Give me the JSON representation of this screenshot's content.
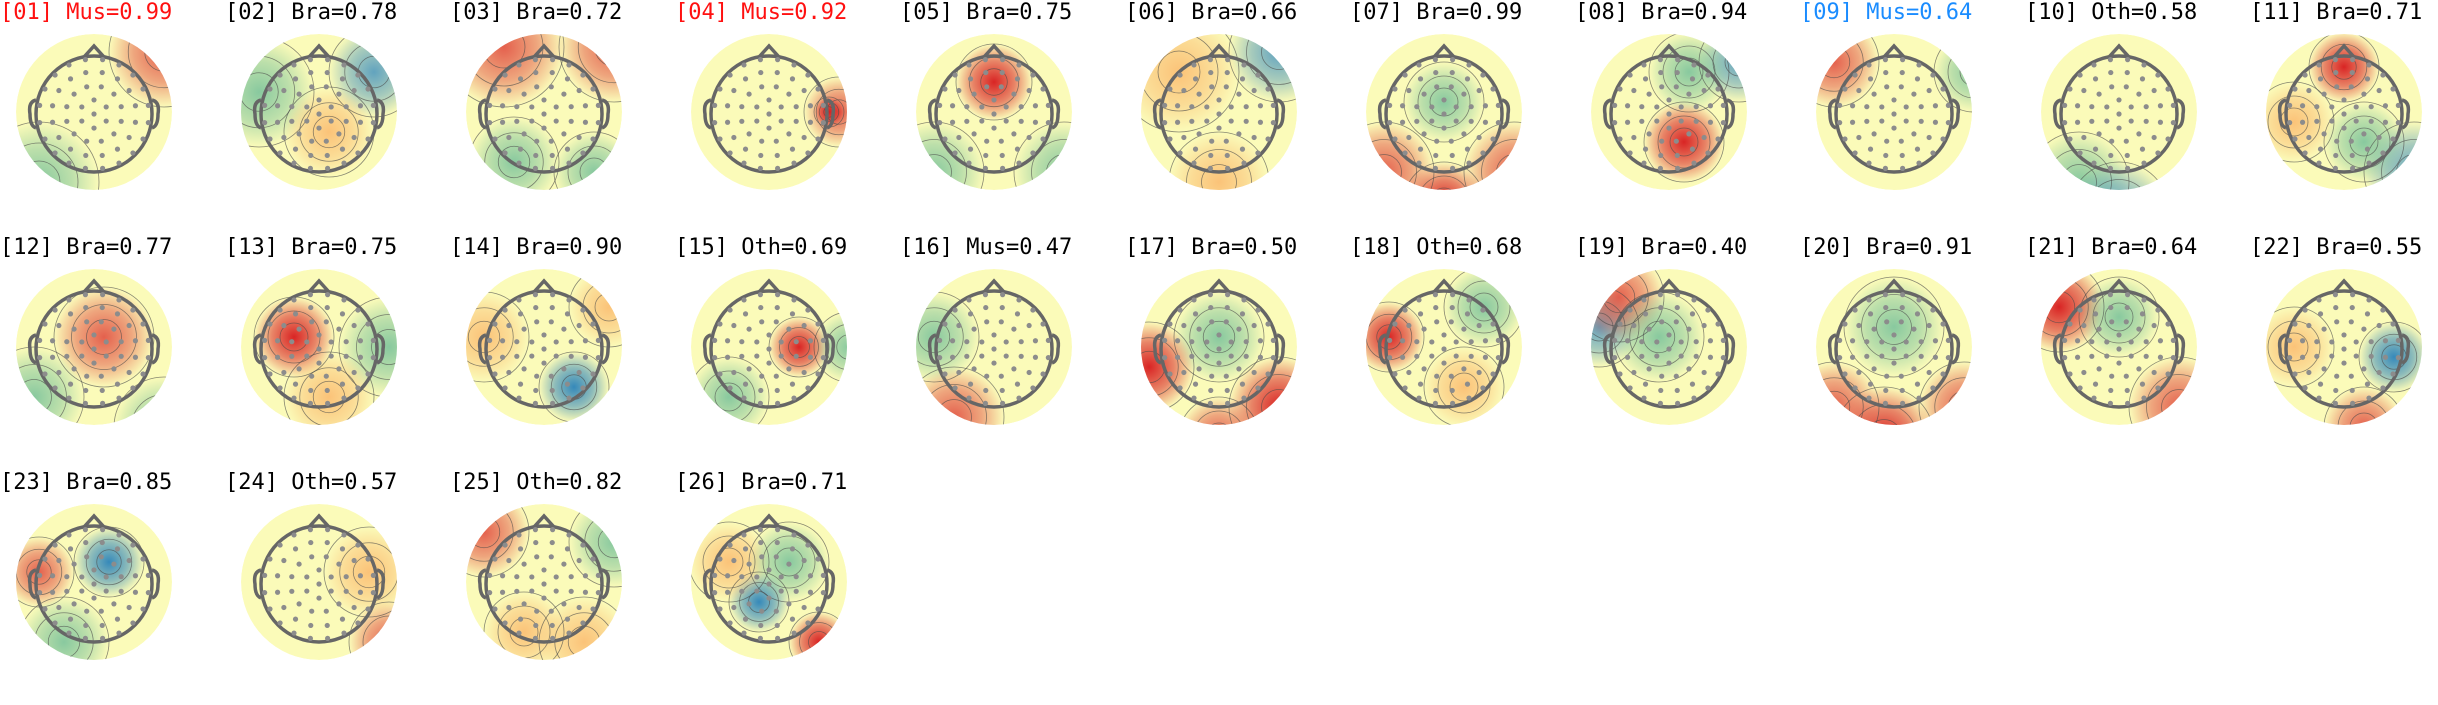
{
  "colors": {
    "rejected": "#ff1010",
    "selected": "#1a8cff",
    "normal": "#000000",
    "head_outline": "#666666",
    "electrode": "#8c8c8c"
  },
  "components": [
    {
      "id": "[01]",
      "label": "Mus=0.99",
      "status": "rejected"
    },
    {
      "id": "[02]",
      "label": "Bra=0.78",
      "status": "normal"
    },
    {
      "id": "[03]",
      "label": "Bra=0.72",
      "status": "normal"
    },
    {
      "id": "[04]",
      "label": "Mus=0.92",
      "status": "rejected"
    },
    {
      "id": "[05]",
      "label": "Bra=0.75",
      "status": "normal"
    },
    {
      "id": "[06]",
      "label": "Bra=0.66",
      "status": "normal"
    },
    {
      "id": "[07]",
      "label": "Bra=0.99",
      "status": "normal"
    },
    {
      "id": "[08]",
      "label": "Bra=0.94",
      "status": "normal"
    },
    {
      "id": "[09]",
      "label": "Mus=0.64",
      "status": "selected"
    },
    {
      "id": "[10]",
      "label": "Oth=0.58",
      "status": "normal"
    },
    {
      "id": "[11]",
      "label": "Bra=0.71",
      "status": "normal"
    },
    {
      "id": "[12]",
      "label": "Bra=0.77",
      "status": "normal"
    },
    {
      "id": "[13]",
      "label": "Bra=0.75",
      "status": "normal"
    },
    {
      "id": "[14]",
      "label": "Bra=0.90",
      "status": "normal"
    },
    {
      "id": "[15]",
      "label": "Oth=0.69",
      "status": "normal"
    },
    {
      "id": "[16]",
      "label": "Mus=0.47",
      "status": "normal"
    },
    {
      "id": "[17]",
      "label": "Bra=0.50",
      "status": "normal"
    },
    {
      "id": "[18]",
      "label": "Oth=0.68",
      "status": "normal"
    },
    {
      "id": "[19]",
      "label": "Bra=0.40",
      "status": "normal"
    },
    {
      "id": "[20]",
      "label": "Bra=0.91",
      "status": "normal"
    },
    {
      "id": "[21]",
      "label": "Bra=0.64",
      "status": "normal"
    },
    {
      "id": "[22]",
      "label": "Bra=0.55",
      "status": "normal"
    },
    {
      "id": "[23]",
      "label": "Bra=0.85",
      "status": "normal"
    },
    {
      "id": "[24]",
      "label": "Oth=0.57",
      "status": "normal"
    },
    {
      "id": "[25]",
      "label": "Oth=0.82",
      "status": "normal"
    },
    {
      "id": "[26]",
      "label": "Bra=0.71",
      "status": "normal"
    }
  ]
}
